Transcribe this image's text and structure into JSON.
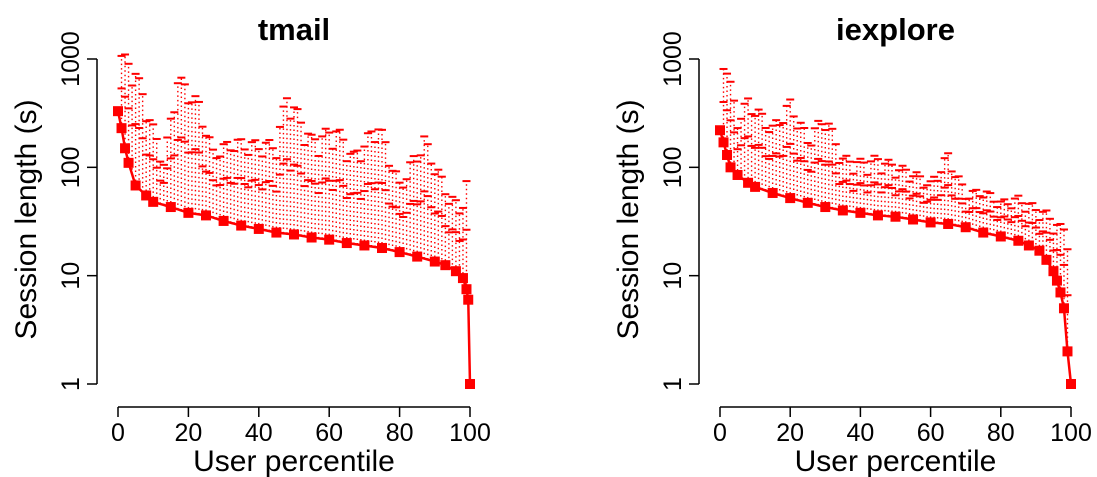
{
  "chart_data": [
    {
      "type": "line",
      "title": "tmail",
      "xlabel": "User percentile",
      "ylabel": "Session length (s)",
      "xlim": [
        0,
        100
      ],
      "ylim": [
        1,
        1000
      ],
      "yscale": "log",
      "x_ticks": [
        "0",
        "20",
        "40",
        "60",
        "80",
        "100"
      ],
      "y_ticks": [
        "1",
        "10",
        "100",
        "1000"
      ],
      "grid": false,
      "color": "#ff0000",
      "median_curve": {
        "x": [
          0,
          1,
          2,
          3,
          5,
          8,
          10,
          15,
          20,
          25,
          30,
          35,
          40,
          45,
          50,
          55,
          60,
          65,
          70,
          75,
          80,
          85,
          90,
          93,
          96,
          98,
          99,
          99.5,
          100
        ],
        "y": [
          330,
          230,
          150,
          110,
          68,
          55,
          48,
          43,
          38,
          36,
          32,
          29,
          27,
          25,
          24,
          22.5,
          21.5,
          20,
          19,
          18,
          16.5,
          15,
          13.5,
          12.5,
          11,
          9.5,
          7.5,
          6,
          1
        ]
      },
      "upper_whisker": {
        "x": [
          1,
          5,
          10,
          13,
          17,
          23,
          27,
          33,
          37,
          45,
          48,
          55,
          62,
          67,
          74,
          80,
          87,
          93,
          97,
          99
        ],
        "y": [
          1200,
          850,
          250,
          120,
          750,
          420,
          150,
          190,
          180,
          180,
          520,
          200,
          250,
          140,
          280,
          75,
          200,
          70,
          45,
          80
        ]
      }
    },
    {
      "type": "line",
      "title": "iexplore",
      "xlabel": "User percentile",
      "ylabel": "Session length (s)",
      "xlim": [
        0,
        100
      ],
      "ylim": [
        1,
        1000
      ],
      "yscale": "log",
      "x_ticks": [
        "0",
        "20",
        "40",
        "60",
        "80",
        "100"
      ],
      "y_ticks": [
        "1",
        "10",
        "100",
        "1000"
      ],
      "grid": false,
      "color": "#ff0000",
      "median_curve": {
        "x": [
          0,
          1,
          2,
          3,
          5,
          8,
          10,
          15,
          20,
          25,
          30,
          35,
          40,
          45,
          50,
          55,
          60,
          65,
          70,
          75,
          80,
          85,
          88,
          91,
          93,
          95,
          96,
          97,
          98,
          99,
          100
        ],
        "y": [
          220,
          170,
          130,
          100,
          85,
          72,
          66,
          58,
          52,
          47,
          43,
          40,
          38,
          36,
          35,
          33,
          31,
          30,
          28,
          25,
          23,
          21,
          19,
          17,
          14,
          11,
          9,
          7,
          5,
          2,
          1
        ]
      },
      "upper_whisker": {
        "x": [
          0.5,
          2,
          5,
          8,
          15,
          20,
          25,
          30,
          35,
          40,
          45,
          50,
          55,
          60,
          65,
          70,
          75,
          80,
          85,
          90,
          93,
          97
        ],
        "y": [
          1300,
          900,
          300,
          450,
          250,
          430,
          200,
          330,
          130,
          120,
          130,
          110,
          95,
          75,
          140,
          60,
          65,
          50,
          55,
          45,
          40,
          30
        ]
      }
    }
  ]
}
